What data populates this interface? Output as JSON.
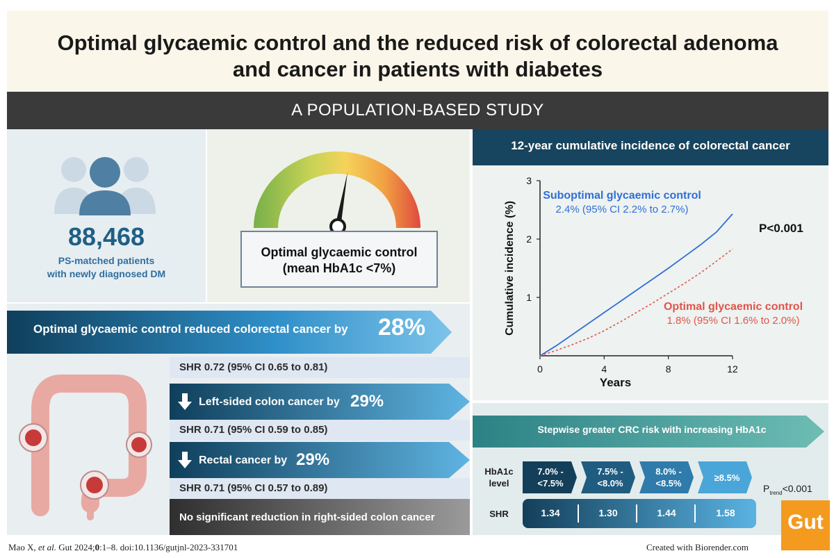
{
  "title": {
    "line1": "Optimal glycaemic control and the reduced risk of colorectal adenoma",
    "line2": "and cancer in patients with diabetes"
  },
  "subtitle": "A POPULATION-BASED STUDY",
  "patients": {
    "count": "88,468",
    "caption_line1": "PS-matched patients",
    "caption_line2": "with newly diagnosed DM"
  },
  "gauge": {
    "label_line1": "Optimal glycaemic control",
    "label_line2": "(mean HbA1c <7%)"
  },
  "reduction": {
    "headline": "Optimal glycaemic control reduced colorectal cancer by",
    "headline_pct": "28%",
    "shr_overall": "SHR 0.72 (95% CI 0.65 to 0.81)",
    "left_label": "Left-sided colon cancer by",
    "left_pct": "29%",
    "shr_left": "SHR 0.71 (95% CI 0.59 to 0.85)",
    "rectal_label": "Rectal cancer by",
    "rectal_pct": "29%",
    "shr_rectal": "SHR 0.71 (95% CI 0.57 to 0.89)",
    "no_sig": "No significant reduction in right-sided colon cancer",
    "down_arrow_icon": "arrow-down-icon"
  },
  "chart_header": "12-year cumulative incidence of colorectal cancer",
  "chart_data": {
    "type": "line",
    "xlabel": "Years",
    "ylabel": "Cumulative incidence (%)",
    "xlim": [
      0,
      12
    ],
    "ylim": [
      0,
      3
    ],
    "x_ticks": [
      "0",
      "4",
      "8",
      "12"
    ],
    "y_ticks": [
      "1",
      "2",
      "3"
    ],
    "series": [
      {
        "name": "Suboptimal glycaemic control",
        "stat": "2.4% (95% CI 2.2% to 2.7%)",
        "color": "#2f6fd6",
        "style": "solid",
        "x": [
          0,
          1,
          2,
          3,
          4,
          5,
          6,
          7,
          8,
          9,
          10,
          11,
          12
        ],
        "y": [
          0,
          0.17,
          0.36,
          0.55,
          0.74,
          0.93,
          1.12,
          1.31,
          1.5,
          1.7,
          1.9,
          2.12,
          2.43
        ]
      },
      {
        "name": "Optimal glycaemic control",
        "stat": "1.8% (95% CI 1.6% to 2.0%)",
        "color": "#e0544b",
        "style": "dotted",
        "x": [
          0,
          1,
          2,
          3,
          4,
          5,
          6,
          7,
          8,
          9,
          10,
          11,
          12
        ],
        "y": [
          0,
          0.09,
          0.19,
          0.3,
          0.43,
          0.58,
          0.74,
          0.9,
          1.07,
          1.24,
          1.42,
          1.62,
          1.83
        ]
      }
    ],
    "annotation": "P<0.001"
  },
  "stepwise": {
    "title": "Stepwise greater CRC risk with increasing HbA1c",
    "hba_label_line1": "HbA1c",
    "hba_label_line2": "level",
    "shr_label": "SHR",
    "levels": [
      {
        "line1": "7.0% -",
        "line2": "<7.5%",
        "shr": "1.34"
      },
      {
        "line1": "7.5% -",
        "line2": "<8.0%",
        "shr": "1.30"
      },
      {
        "line1": "8.0% -",
        "line2": "<8.5%",
        "shr": "1.44"
      },
      {
        "line1": "≥8.5%",
        "line2": "",
        "shr": "1.58"
      }
    ],
    "ptrend_prefix": "P",
    "ptrend_sub": "trend",
    "ptrend_suffix": "<0.001"
  },
  "footer": {
    "citation_pre": "Mao X, ",
    "citation_etal": "et al.",
    "citation_journal": " Gut 2024;",
    "citation_vol": "0",
    "citation_post": ":1–8. doi:10.1136/gutjnl-2023-331701",
    "credit": "Created with Biorender.com",
    "logo": "Gut"
  }
}
